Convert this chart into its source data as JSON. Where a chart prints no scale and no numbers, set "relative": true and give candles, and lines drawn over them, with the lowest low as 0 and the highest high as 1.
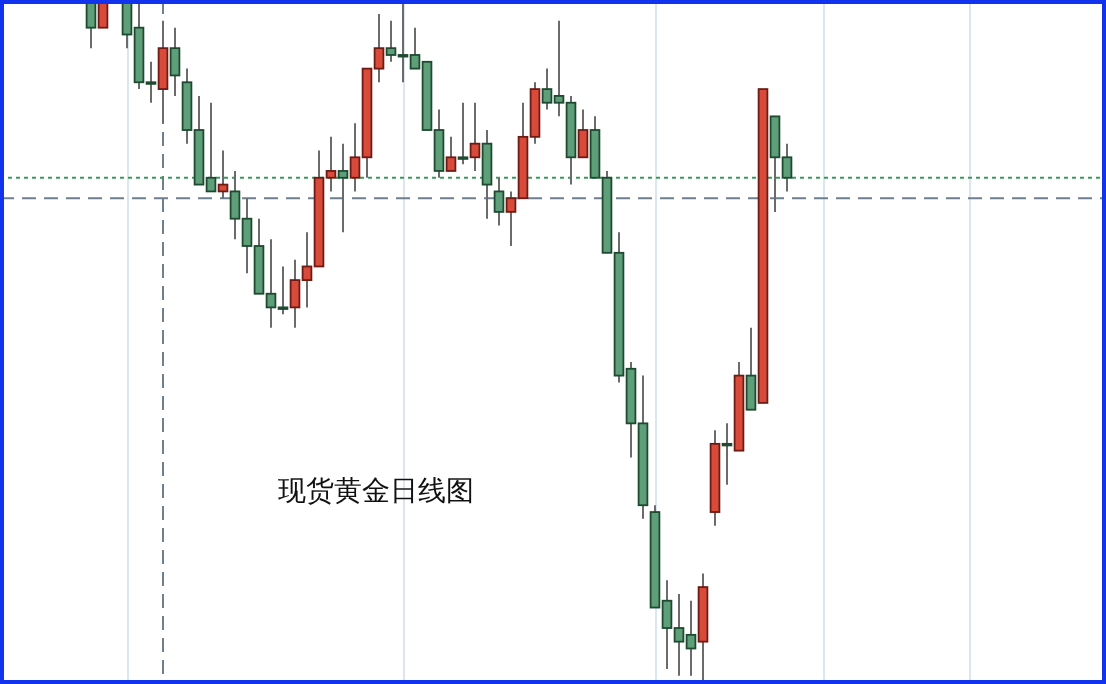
{
  "chart_data": {
    "type": "candlestick",
    "title": "现货黄金日线图",
    "relative": true,
    "categories": [
      null,
      null,
      null,
      null,
      null,
      null,
      null,
      null,
      null,
      null,
      null,
      null,
      null,
      null,
      null,
      null,
      null,
      null,
      null,
      null,
      null,
      null,
      null,
      null,
      null,
      null,
      null,
      null,
      null,
      null,
      null,
      null,
      null,
      null,
      null,
      null,
      null,
      null,
      null,
      null,
      null,
      null,
      null,
      null,
      null,
      null,
      null,
      null,
      null,
      null,
      null,
      null,
      null,
      null,
      null,
      null,
      null,
      null,
      null
    ],
    "ohlc": [
      [
        1.0,
        1.0,
        0.93,
        0.96
      ],
      [
        0.96,
        1.0,
        0.96,
        1.0
      ],
      null,
      [
        1.0,
        1.0,
        0.93,
        0.95
      ],
      [
        0.96,
        1.0,
        0.87,
        0.88
      ],
      [
        0.88,
        0.91,
        0.85,
        0.88
      ],
      [
        0.87,
        0.97,
        0.82,
        0.93
      ],
      [
        0.93,
        0.96,
        0.86,
        0.89
      ],
      [
        0.88,
        0.9,
        0.79,
        0.81
      ],
      [
        0.81,
        0.86,
        0.73,
        0.73
      ],
      [
        0.74,
        0.85,
        0.72,
        0.72
      ],
      [
        0.72,
        0.78,
        0.71,
        0.73
      ],
      [
        0.72,
        0.75,
        0.65,
        0.68
      ],
      [
        0.68,
        0.71,
        0.6,
        0.64
      ],
      [
        0.64,
        0.68,
        0.57,
        0.57
      ],
      [
        0.57,
        0.65,
        0.52,
        0.55
      ],
      [
        0.55,
        0.61,
        0.54,
        0.55
      ],
      [
        0.55,
        0.62,
        0.52,
        0.59
      ],
      [
        0.59,
        0.66,
        0.55,
        0.61
      ],
      [
        0.61,
        0.78,
        0.61,
        0.74
      ],
      [
        0.74,
        0.8,
        0.72,
        0.75
      ],
      [
        0.75,
        0.79,
        0.66,
        0.74
      ],
      [
        0.74,
        0.82,
        0.72,
        0.77
      ],
      [
        0.77,
        0.9,
        0.74,
        0.9
      ],
      [
        0.9,
        0.98,
        0.88,
        0.93
      ],
      [
        0.93,
        0.97,
        0.91,
        0.92
      ],
      [
        0.92,
        1.0,
        0.88,
        0.92
      ],
      [
        0.92,
        0.96,
        0.9,
        0.9
      ],
      [
        0.91,
        0.91,
        0.81,
        0.81
      ],
      [
        0.81,
        0.84,
        0.74,
        0.75
      ],
      [
        0.75,
        0.8,
        0.75,
        0.77
      ],
      [
        0.77,
        0.85,
        0.76,
        0.77
      ],
      [
        0.77,
        0.85,
        0.75,
        0.79
      ],
      [
        0.79,
        0.81,
        0.68,
        0.73
      ],
      [
        0.72,
        0.74,
        0.67,
        0.69
      ],
      [
        0.69,
        0.72,
        0.64,
        0.71
      ],
      [
        0.71,
        0.85,
        0.71,
        0.8
      ],
      [
        0.8,
        0.88,
        0.79,
        0.87
      ],
      [
        0.87,
        0.9,
        0.84,
        0.85
      ],
      [
        0.86,
        0.97,
        0.83,
        0.85
      ],
      [
        0.85,
        0.86,
        0.73,
        0.77
      ],
      [
        0.77,
        0.84,
        0.77,
        0.81
      ],
      [
        0.81,
        0.83,
        0.74,
        0.74
      ],
      [
        0.74,
        0.75,
        0.63,
        0.63
      ],
      [
        0.63,
        0.66,
        0.44,
        0.45
      ],
      [
        0.46,
        0.47,
        0.33,
        0.38
      ],
      [
        0.38,
        0.45,
        0.24,
        0.26
      ],
      [
        0.25,
        0.26,
        0.11,
        0.11
      ],
      [
        0.12,
        0.15,
        0.02,
        0.08
      ],
      [
        0.08,
        0.13,
        0.01,
        0.06
      ],
      [
        0.07,
        0.12,
        0.01,
        0.05
      ],
      [
        0.06,
        0.16,
        0.0,
        0.14
      ],
      [
        0.25,
        0.37,
        0.23,
        0.35
      ],
      [
        0.35,
        0.38,
        0.29,
        0.35
      ],
      [
        0.34,
        0.47,
        0.34,
        0.45
      ],
      [
        0.45,
        0.52,
        0.4,
        0.4
      ],
      [
        0.41,
        0.87,
        0.41,
        0.87
      ],
      [
        0.83,
        0.83,
        0.69,
        0.77
      ],
      [
        0.77,
        0.79,
        0.72,
        0.74
      ]
    ],
    "ref_lines": [
      {
        "axis": "y",
        "value": 0.74,
        "color": "#3a9a5a",
        "line_style": "dotted"
      },
      {
        "axis": "y",
        "value": 0.71,
        "color": "#6e7f8f",
        "line_style": "dashed"
      }
    ],
    "grid": true
  }
}
